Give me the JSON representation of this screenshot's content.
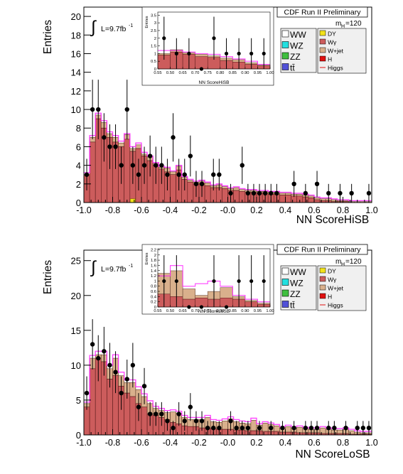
{
  "colors": {
    "WW": "#ffffff",
    "WZ": "#22e0e0",
    "ZZ": "#3fbf3f",
    "tt": "#5050d8",
    "DY": "#f2e21a",
    "Wgamma": "#cc5c5c",
    "Wjet": "#d9b08c",
    "H": "#e01010",
    "Higgs": "#ff22ff",
    "legend_bg": "#f0f0f0",
    "data": "#000000"
  },
  "panels": [
    {
      "header": "CDF Run II Preliminary",
      "ylabel": "Entries",
      "xlabel": "NN ScoreHiSB",
      "lumi_text": "L=9.7fb",
      "lumi_sup": "-1",
      "integral_symbol": "∫",
      "mass_label": "m",
      "mass_sub": "H",
      "mass_value": "=120",
      "legend_left": [
        "WW",
        "WZ",
        "ZZ",
        "tt̄"
      ],
      "legend_right": [
        "DY",
        "Wγ",
        "W+jet",
        "H",
        "Higgs"
      ],
      "x_ticks": [
        "-1.0",
        "-0.8",
        "-0.6",
        "-0.4",
        "-0.2",
        "-0.0",
        "0.2",
        "0.4",
        "0.6",
        "0.8",
        "1.0"
      ],
      "y_ticks": [
        "0",
        "2",
        "4",
        "6",
        "8",
        "10",
        "12",
        "14",
        "16",
        "18",
        "20"
      ],
      "inset": {
        "ylabel": "Entries",
        "xlabel": "NN ScoreHiSB",
        "x_ticks": [
          "0.55",
          "0.50",
          "0.65",
          "0.70",
          "0.75",
          "0.80",
          "0.85",
          "0.90",
          "0.95",
          "1.00"
        ],
        "y_ticks": [
          "0",
          "0.5",
          "1",
          "1.5",
          "2",
          "2.5",
          "3",
          "3.5"
        ]
      }
    },
    {
      "header": "CDF Run II Preliminary",
      "ylabel": "Entries",
      "xlabel": "NN ScoreLoSB",
      "lumi_text": "L=9.7fb",
      "lumi_sup": "-1",
      "integral_symbol": "∫",
      "mass_label": "m",
      "mass_sub": "H",
      "mass_value": "=120",
      "legend_left": [
        "WW",
        "WZ",
        "ZZ",
        "tt̄"
      ],
      "legend_right": [
        "DY",
        "Wγ",
        "W+jet",
        "H",
        "Higgs"
      ],
      "x_ticks": [
        "-1.0",
        "-0.8",
        "-0.6",
        "-0.4",
        "-0.2",
        "-0.0",
        "0.2",
        "0.4",
        "0.6",
        "0.8",
        "1.0"
      ],
      "y_ticks": [
        "0",
        "5",
        "10",
        "15",
        "20",
        "25"
      ],
      "inset": {
        "ylabel": "Entries",
        "xlabel": "NN ScoreLoSB",
        "x_ticks": [
          "0.55",
          "0.50",
          "0.65",
          "0.70",
          "0.75",
          "0.80",
          "0.85",
          "0.90",
          "0.95",
          "1.00"
        ],
        "y_ticks": [
          "0",
          "0.2",
          "0.4",
          "0.6",
          "0.8",
          "1",
          "1.2",
          "1.4",
          "1.6",
          "1.8",
          "2",
          "2.2"
        ]
      }
    }
  ],
  "chart_data": [
    {
      "type": "bar",
      "title": "CDF Run II Preliminary",
      "xlabel": "NN ScoreHiSB",
      "ylabel": "Entries",
      "xlim": [
        -1.0,
        1.0
      ],
      "ylim": [
        0,
        21
      ],
      "bin_edges_start": -1.0,
      "bin_width": 0.04,
      "series": [
        {
          "name": "Wγ",
          "values": [
            3.0,
            6.5,
            9.0,
            8.0,
            7.0,
            6.5,
            6.0,
            6.8,
            5.5,
            5.8,
            5.0,
            4.5,
            4.0,
            3.6,
            3.3,
            3.0,
            3.5,
            2.5,
            2.2,
            2.0,
            2.0,
            1.8,
            1.6,
            1.6,
            1.5,
            1.3,
            1.3,
            1.2,
            1.1,
            1.1,
            1.0,
            1.0,
            0.9,
            0.9,
            0.8,
            0.8,
            0.7,
            0.7,
            0.6,
            0.5,
            0.3,
            0.2,
            0.2,
            0.1,
            0.1,
            0.1,
            0.0,
            0.0,
            0.0,
            0.0
          ]
        },
        {
          "name": "W+jet",
          "values": [
            0.0,
            0.5,
            0.4,
            0.6,
            0.4,
            0.5,
            0.4,
            0.5,
            0.3,
            0.4,
            0.2,
            0.4,
            0.2,
            0.2,
            0.4,
            0.3,
            0.4,
            0.2,
            0.2,
            0.2,
            0.3,
            0.3,
            0.2,
            0.3,
            0.2,
            0.2,
            0.3,
            0.2,
            0.2,
            0.2,
            0.2,
            0.2,
            0.2,
            0.2,
            0.2,
            0.2,
            0.2,
            0.2,
            0.2,
            0.2,
            0.2,
            0.2,
            0.2,
            0.2,
            0.1,
            0.1,
            0.1,
            0.1,
            0.1,
            0.1
          ]
        },
        {
          "name": "DY",
          "values": [
            0,
            0,
            0,
            0,
            0.0,
            0.0,
            0.0,
            0.0,
            0.4,
            0.0,
            0.0,
            0.0,
            0.0,
            0.0,
            0.0,
            0.0,
            0.0,
            0.0,
            0.0,
            0.0,
            0.0,
            0.0,
            0.0,
            0.0,
            0.0,
            0.0,
            0.0,
            0.0,
            0.0,
            0.0,
            0.0,
            0.0,
            0.0,
            0.0,
            0.0,
            0.0,
            0.0,
            0.0,
            0.0,
            0.0,
            0.0,
            0.0,
            0.0,
            0.0,
            0.0,
            0.0,
            0.0,
            0.0,
            0.0,
            0.0
          ]
        },
        {
          "name": "Higgs",
          "values": [
            3.2,
            7.2,
            9.6,
            8.8,
            7.6,
            7.2,
            6.6,
            7.4,
            6.0,
            6.4,
            5.4,
            5.0,
            4.3,
            3.9,
            3.8,
            3.4,
            4.0,
            2.8,
            2.5,
            2.3,
            2.4,
            2.2,
            1.9,
            2.0,
            1.8,
            1.6,
            1.7,
            1.5,
            1.4,
            1.4,
            1.3,
            1.3,
            1.2,
            1.2,
            1.1,
            1.1,
            1.0,
            1.0,
            0.9,
            0.8,
            0.6,
            0.5,
            0.5,
            0.4,
            0.3,
            0.3,
            0.2,
            0.2,
            0.2,
            0.2
          ]
        }
      ],
      "data_points": {
        "name": "data",
        "x": [
          -0.98,
          -0.94,
          -0.9,
          -0.86,
          -0.82,
          -0.78,
          -0.74,
          -0.7,
          -0.66,
          -0.62,
          -0.58,
          -0.54,
          -0.5,
          -0.46,
          -0.42,
          -0.38,
          -0.34,
          -0.3,
          -0.26,
          -0.22,
          -0.18,
          -0.1,
          -0.06,
          0.02,
          0.1,
          0.14,
          0.18,
          0.22,
          0.26,
          0.3,
          0.34,
          0.46,
          0.54,
          0.62,
          0.7,
          0.78,
          0.86,
          0.98
        ],
        "y": [
          3,
          10,
          10,
          7,
          6,
          6,
          4,
          10,
          4,
          3,
          4,
          5,
          4,
          4,
          3,
          7,
          3,
          3,
          5,
          2,
          2,
          3,
          3,
          1,
          4,
          1,
          1,
          1,
          1,
          1,
          1,
          2,
          1,
          2,
          1,
          1,
          1,
          1
        ],
        "err": [
          1.7,
          3.2,
          3.2,
          2.6,
          2.4,
          2.4,
          2.0,
          3.2,
          2.0,
          1.7,
          2.0,
          2.2,
          2.0,
          2.0,
          1.7,
          2.6,
          1.7,
          1.7,
          2.2,
          1.4,
          1.4,
          1.7,
          1.7,
          1.0,
          2.0,
          1.0,
          1.0,
          1.0,
          1.0,
          1.0,
          1.0,
          1.4,
          1.0,
          1.4,
          1.0,
          1.0,
          1.0,
          1.0
        ]
      },
      "inset": {
        "xlabel": "NN ScoreHiSB",
        "ylabel": "Entries",
        "xlim": [
          0.55,
          1.0
        ],
        "ylim": [
          0,
          3.7
        ],
        "bin_edges_start": 0.55,
        "bin_width": 0.05,
        "series": [
          {
            "name": "Wγ",
            "values": [
              0.9,
              1.1,
              0.95,
              0.8,
              0.75,
              0.55,
              0.45,
              0.3,
              0.2
            ]
          },
          {
            "name": "W+jet",
            "values": [
              0.1,
              0.15,
              0.1,
              0.15,
              0.1,
              0.15,
              0.15,
              0.1,
              0.05
            ]
          },
          {
            "name": "Higgs",
            "values": [
              1.2,
              1.2,
              1.1,
              1.0,
              0.95,
              0.8,
              0.65,
              0.5,
              0.3
            ]
          }
        ],
        "data_points": {
          "name": "data",
          "x": [
            0.575,
            0.625,
            0.675,
            0.725,
            0.775,
            0.825,
            0.875,
            0.925,
            0.975
          ],
          "y": [
            2,
            1,
            1,
            0,
            2,
            1,
            1,
            1,
            1
          ],
          "err": [
            1.4,
            1.0,
            1.0,
            0,
            1.4,
            1.0,
            1.0,
            1.0,
            1.0
          ]
        }
      },
      "legend": [
        "WW",
        "WZ",
        "ZZ",
        "tt̄",
        "DY",
        "Wγ",
        "W+jet",
        "H",
        "Higgs"
      ],
      "legend_placement": "top-right"
    },
    {
      "type": "bar",
      "title": "CDF Run II Preliminary",
      "xlabel": "NN ScoreLoSB",
      "ylabel": "Entries",
      "xlim": [
        -1.0,
        1.0
      ],
      "ylim": [
        0,
        26.5
      ],
      "bin_edges_start": -1.0,
      "bin_width": 0.04,
      "series": [
        {
          "name": "Wγ",
          "values": [
            4.0,
            9.5,
            11.0,
            10.5,
            8.0,
            8.5,
            7.0,
            6.0,
            5.5,
            4.5,
            4.0,
            3.0,
            2.8,
            2.5,
            2.2,
            1.8,
            1.6,
            1.3,
            1.2,
            1.2,
            1.0,
            1.0,
            0.9,
            0.8,
            0.8,
            0.8,
            0.7,
            0.7,
            0.6,
            0.6,
            0.6,
            0.5,
            0.5,
            0.5,
            0.4,
            0.4,
            0.4,
            0.3,
            0.3,
            0.3,
            0.3,
            0.2,
            0.2,
            0.2,
            0.2,
            0.2,
            0.1,
            0.1,
            0.1,
            0.1
          ]
        },
        {
          "name": "W+jet",
          "values": [
            0.5,
            1.5,
            0.5,
            1.0,
            1.5,
            2.5,
            1.5,
            1.5,
            2.0,
            2.0,
            1.5,
            1.5,
            1.0,
            1.0,
            1.0,
            1.5,
            1.5,
            1.2,
            1.0,
            1.0,
            1.2,
            1.5,
            1.0,
            1.0,
            1.2,
            1.5,
            1.2,
            1.0,
            1.0,
            1.5,
            0.8,
            1.2,
            1.0,
            0.8,
            0.6,
            0.8,
            0.6,
            0.8,
            0.6,
            0.5,
            0.5,
            0.8,
            0.6,
            0.5,
            0.5,
            0.6,
            0.5,
            0.3,
            0.2,
            0.2
          ]
        },
        {
          "name": "DY",
          "values": [
            0,
            0,
            0,
            0,
            0.0,
            0.0,
            0.0,
            0.0,
            0.0,
            0.0,
            0.0,
            0.0,
            0.0,
            0.0,
            0.0,
            0.0,
            0.0,
            0.0,
            0.0,
            0.0,
            0.0,
            0.0,
            0.0,
            0.0,
            0.0,
            0.0,
            0.0,
            0.0,
            0.0,
            0.0,
            0.0,
            0.0,
            0.0,
            0.0,
            0.0,
            0.0,
            0.0,
            0.0,
            0.0,
            0.0,
            0.0,
            0.0,
            0.0,
            0.0,
            0.0,
            0.0,
            0.0,
            0.0,
            0.0,
            0.0
          ]
        },
        {
          "name": "Higgs",
          "values": [
            4.7,
            11.4,
            12.0,
            12.0,
            10.0,
            11.5,
            9.0,
            7.9,
            7.9,
            6.9,
            5.9,
            4.9,
            4.1,
            3.8,
            3.5,
            3.6,
            3.4,
            2.8,
            2.5,
            2.5,
            2.5,
            2.8,
            2.2,
            2.1,
            2.3,
            2.6,
            2.2,
            2.0,
            1.9,
            2.4,
            1.6,
            1.9,
            1.7,
            1.5,
            1.2,
            1.4,
            1.2,
            1.3,
            1.1,
            1.0,
            1.0,
            1.2,
            1.0,
            0.9,
            0.9,
            1.0,
            0.8,
            0.6,
            0.5,
            0.5
          ]
        }
      ],
      "data_points": {
        "name": "data",
        "x": [
          -0.98,
          -0.94,
          -0.9,
          -0.86,
          -0.82,
          -0.78,
          -0.74,
          -0.7,
          -0.66,
          -0.62,
          -0.58,
          -0.54,
          -0.5,
          -0.46,
          -0.42,
          -0.38,
          -0.34,
          -0.3,
          -0.26,
          -0.22,
          -0.18,
          -0.14,
          -0.1,
          -0.06,
          0.02,
          0.06,
          0.1,
          0.14,
          0.22,
          0.3,
          0.38,
          0.46,
          0.54,
          0.58,
          0.62,
          0.7,
          0.74,
          0.82,
          0.9,
          0.94,
          0.98
        ],
        "y": [
          6,
          13,
          11,
          12,
          10,
          9,
          6,
          8,
          10,
          4,
          7,
          3,
          3,
          3,
          2,
          1,
          3,
          2,
          4,
          2,
          2,
          1,
          1,
          1,
          2,
          1,
          1,
          1,
          1,
          1,
          1,
          1,
          1,
          1,
          1,
          1,
          1,
          1,
          1,
          1,
          1
        ],
        "err": [
          2.4,
          3.6,
          3.3,
          3.5,
          3.2,
          3.0,
          2.4,
          2.8,
          3.2,
          2.0,
          2.6,
          1.7,
          1.7,
          1.7,
          1.4,
          1.0,
          1.7,
          1.4,
          2.0,
          1.4,
          1.4,
          1.0,
          1.0,
          1.0,
          1.4,
          1.0,
          1.0,
          1.0,
          1.0,
          1.0,
          1.0,
          1.0,
          1.0,
          1.0,
          1.0,
          1.0,
          1.0,
          1.0,
          1.0,
          1.0,
          1.0
        ]
      },
      "inset": {
        "xlabel": "NN ScoreLoSB",
        "ylabel": "Entries",
        "xlim": [
          0.55,
          1.0
        ],
        "ylim": [
          0,
          2.25
        ],
        "bin_edges_start": 0.55,
        "bin_width": 0.05,
        "series": [
          {
            "name": "Wγ",
            "values": [
              0.5,
              0.4,
              0.3,
              0.35,
              0.3,
              0.35,
              0.3,
              0.2,
              0.1
            ]
          },
          {
            "name": "W+jet",
            "values": [
              0.8,
              1.0,
              0.4,
              0.1,
              0.3,
              0.4,
              0.1,
              0.05,
              0.05
            ]
          },
          {
            "name": "Higgs",
            "values": [
              1.2,
              1.6,
              0.8,
              0.9,
              1.0,
              0.8,
              0.45,
              0.3,
              0.2
            ]
          }
        ],
        "data_points": {
          "name": "data",
          "x": [
            0.575,
            0.625,
            0.675,
            0.725,
            0.775,
            0.825,
            0.875,
            0.925,
            0.975
          ],
          "y": [
            1,
            1,
            0,
            0,
            1,
            0,
            1,
            1,
            1
          ],
          "err": [
            1.0,
            1.0,
            0,
            0,
            1.0,
            0,
            1.0,
            1.0,
            1.0
          ]
        }
      },
      "legend": [
        "WW",
        "WZ",
        "ZZ",
        "tt̄",
        "DY",
        "Wγ",
        "W+jet",
        "H",
        "Higgs"
      ],
      "legend_placement": "top-right"
    }
  ]
}
